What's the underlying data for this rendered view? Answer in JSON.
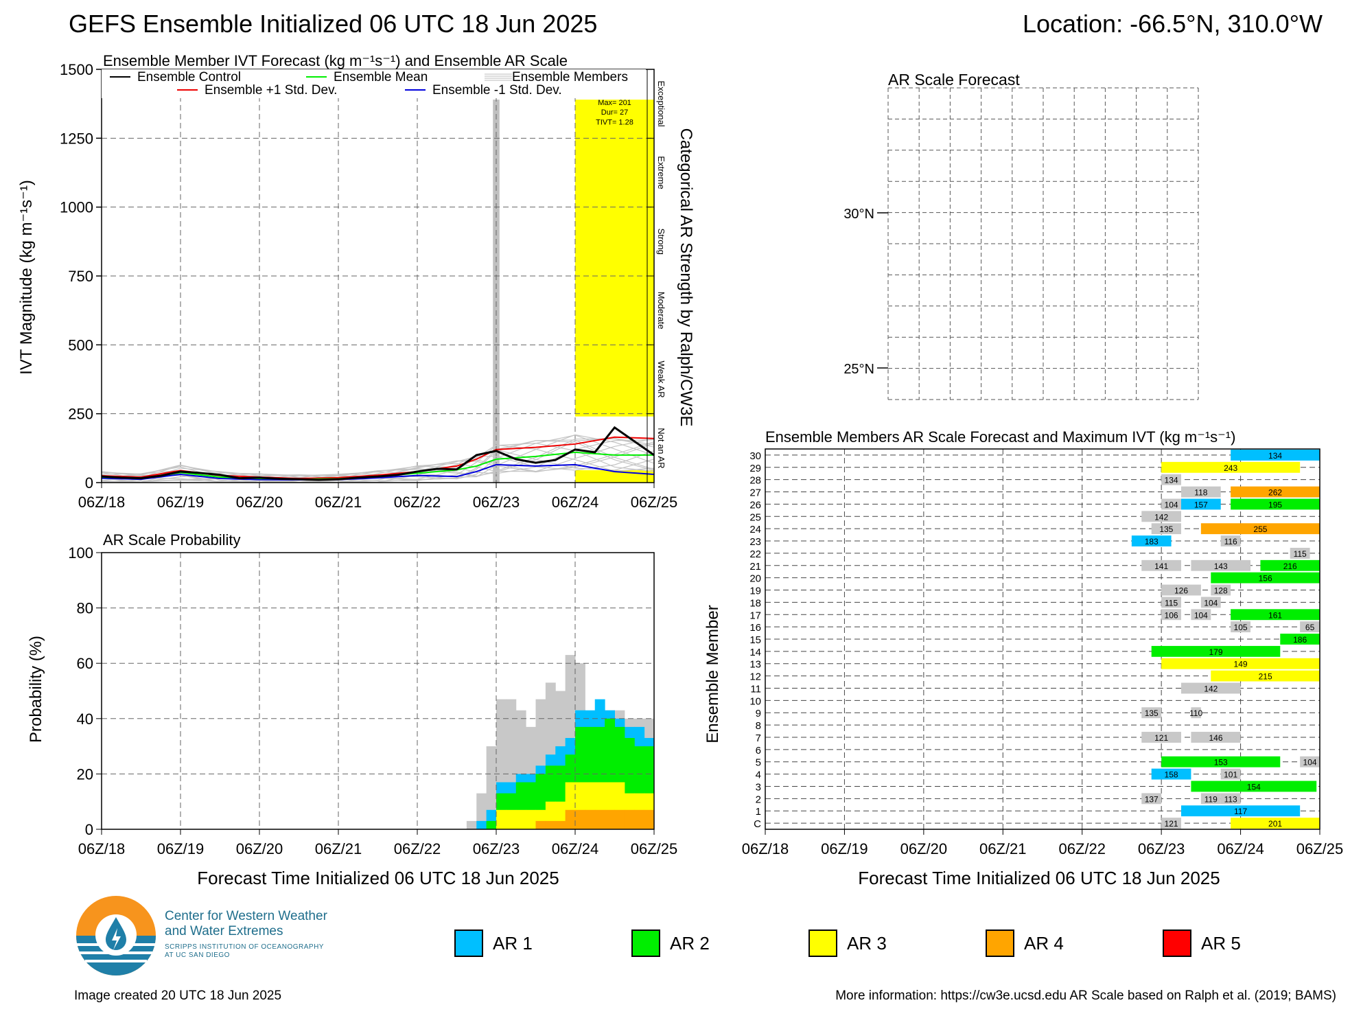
{
  "title": "GEFS Ensemble Initialized 06 UTC 18 Jun 2025",
  "location": "Location: -66.5°N, 310.0°W",
  "time_ticks": [
    "06Z/18",
    "06Z/19",
    "06Z/20",
    "06Z/21",
    "06Z/22",
    "06Z/23",
    "06Z/24",
    "06Z/25"
  ],
  "colors": {
    "ar1": "#00bfff",
    "ar2": "#00ee00",
    "ar3": "#ffff00",
    "ar4": "#ffa500",
    "ar5": "#ff0000",
    "gray": "#c8c8c8"
  },
  "chart_data": [
    {
      "id": "ivt",
      "type": "line",
      "title": "Ensemble Member IVT Forecast (kg m⁻¹s⁻¹) and Ensemble AR Scale",
      "ylabel": "IVT Magnitude (kg m⁻¹s⁻¹)",
      "right_label": "Categorical AR Strength by Ralph/CW3E",
      "ylim": [
        0,
        1500
      ],
      "yticks": [
        "0",
        "250",
        "500",
        "750",
        "1000",
        "1250",
        "1500"
      ],
      "xlim_hours": [
        0,
        168
      ],
      "legend": [
        "Ensemble Control",
        "Ensemble Mean",
        "Ensemble Members",
        "Ensemble +1 Std. Dev.",
        "Ensemble -1 Std. Dev."
      ],
      "categories": [
        "Not an AR",
        "Weak AR",
        "Moderate",
        "Strong",
        "Extreme",
        "Exceptional"
      ],
      "ar_box": {
        "label_max": "Max= 201",
        "label_dur": "Dur= 27",
        "label_tivt": "TIVT= 1.28"
      },
      "series": [
        {
          "name": "Ensemble Control",
          "color": "#000000",
          "x": [
            0,
            6,
            12,
            18,
            24,
            30,
            36,
            42,
            48,
            54,
            60,
            66,
            72,
            78,
            84,
            90,
            96,
            102,
            108,
            114,
            120,
            126,
            132,
            138,
            144,
            150,
            156,
            162,
            168
          ],
          "y": [
            22,
            18,
            16,
            25,
            40,
            35,
            28,
            16,
            18,
            14,
            12,
            10,
            12,
            18,
            22,
            28,
            40,
            50,
            48,
            100,
            115,
            85,
            72,
            82,
            120,
            110,
            200,
            150,
            100
          ]
        },
        {
          "name": "Ensemble Mean",
          "color": "#00ee00",
          "x": [
            0,
            12,
            24,
            36,
            48,
            60,
            72,
            84,
            96,
            108,
            114,
            120,
            132,
            144,
            156,
            168
          ],
          "y": [
            20,
            15,
            36,
            20,
            15,
            12,
            14,
            22,
            34,
            46,
            60,
            85,
            95,
            110,
            100,
            100
          ]
        },
        {
          "name": "Ensemble +1 Std. Dev.",
          "color": "#ee0000",
          "x": [
            0,
            12,
            24,
            36,
            48,
            60,
            72,
            84,
            96,
            108,
            114,
            120,
            132,
            144,
            156,
            168
          ],
          "y": [
            25,
            20,
            44,
            26,
            20,
            15,
            18,
            27,
            40,
            60,
            85,
            120,
            128,
            140,
            165,
            160
          ]
        },
        {
          "name": "Ensemble -1 Std. Dev.",
          "color": "#0000dd",
          "x": [
            0,
            12,
            24,
            36,
            48,
            60,
            72,
            84,
            96,
            108,
            114,
            120,
            132,
            144,
            156,
            168
          ],
          "y": [
            16,
            12,
            30,
            15,
            11,
            10,
            11,
            17,
            26,
            22,
            40,
            65,
            60,
            65,
            40,
            30
          ]
        }
      ]
    },
    {
      "id": "prob",
      "type": "area",
      "title": "AR Scale Probability",
      "ylabel": "Probability (%)",
      "xlabel": "",
      "ylim": [
        0,
        100
      ],
      "yticks": [
        "0",
        "20",
        "40",
        "60",
        "80",
        "100"
      ],
      "bin_start_hours": [
        111,
        114,
        117,
        120,
        123,
        126,
        129,
        132,
        135,
        138,
        141,
        144,
        147,
        150,
        153,
        156,
        159,
        162,
        165
      ],
      "series": [
        {
          "name": "Any",
          "values": [
            3,
            13,
            30,
            47,
            47,
            43,
            37,
            47,
            53,
            50,
            63,
            60,
            40,
            40,
            43,
            43,
            40,
            40,
            40
          ]
        },
        {
          "name": "AR 1",
          "values": [
            0,
            3,
            7,
            17,
            17,
            20,
            20,
            23,
            27,
            30,
            33,
            43,
            43,
            47,
            43,
            40,
            37,
            37,
            33
          ]
        },
        {
          "name": "AR 2",
          "values": [
            0,
            0,
            3,
            13,
            13,
            17,
            17,
            20,
            23,
            23,
            27,
            37,
            37,
            37,
            40,
            37,
            33,
            30,
            30
          ]
        },
        {
          "name": "AR 3",
          "values": [
            0,
            0,
            0,
            7,
            7,
            7,
            7,
            7,
            10,
            10,
            17,
            17,
            17,
            17,
            17,
            17,
            13,
            13,
            13
          ]
        },
        {
          "name": "AR 4",
          "values": [
            0,
            0,
            0,
            0,
            0,
            0,
            0,
            3,
            3,
            3,
            7,
            7,
            7,
            7,
            7,
            7,
            7,
            7,
            7
          ]
        }
      ]
    },
    {
      "id": "members",
      "type": "table",
      "title": "Ensemble Members AR Scale Forecast and Maximum IVT (kg m⁻¹s⁻¹)",
      "ylabel": "Ensemble Member",
      "xlabel": "Forecast Time Initialized 06 UTC 18 Jun 2025",
      "rows": [
        "C",
        "1",
        "2",
        "3",
        "4",
        "5",
        "6",
        "7",
        "8",
        "9",
        "10",
        "11",
        "12",
        "13",
        "14",
        "15",
        "16",
        "17",
        "18",
        "19",
        "20",
        "21",
        "22",
        "23",
        "24",
        "25",
        "26",
        "27",
        "28",
        "29",
        "30"
      ],
      "events": [
        {
          "row": "C",
          "start": 120,
          "end": 126,
          "cat": 0,
          "label": "121"
        },
        {
          "row": "C",
          "start": 141,
          "end": 168,
          "cat": 3,
          "label": "201"
        },
        {
          "row": "1",
          "start": 126,
          "end": 162,
          "cat": 1,
          "label": "117"
        },
        {
          "row": "2",
          "start": 114,
          "end": 120,
          "cat": 0,
          "label": "137"
        },
        {
          "row": "2",
          "start": 132,
          "end": 138,
          "cat": 0,
          "label": "119"
        },
        {
          "row": "2",
          "start": 138,
          "end": 144,
          "cat": 0,
          "label": "113"
        },
        {
          "row": "3",
          "start": 129,
          "end": 167,
          "cat": 2,
          "label": "154"
        },
        {
          "row": "4",
          "start": 117,
          "end": 129,
          "cat": 1,
          "label": "158"
        },
        {
          "row": "4",
          "start": 138,
          "end": 144,
          "cat": 0,
          "label": "101"
        },
        {
          "row": "5",
          "start": 120,
          "end": 156,
          "cat": 2,
          "label": "153"
        },
        {
          "row": "5",
          "start": 162,
          "end": 168,
          "cat": 0,
          "label": "104"
        },
        {
          "row": "7",
          "start": 114,
          "end": 126,
          "cat": 0,
          "label": "121"
        },
        {
          "row": "7",
          "start": 129,
          "end": 144,
          "cat": 0,
          "label": "146"
        },
        {
          "row": "9",
          "start": 114,
          "end": 120,
          "cat": 0,
          "label": "135"
        },
        {
          "row": "9",
          "start": 129,
          "end": 132,
          "cat": 0,
          "label": "110"
        },
        {
          "row": "11",
          "start": 126,
          "end": 144,
          "cat": 0,
          "label": "142"
        },
        {
          "row": "12",
          "start": 135,
          "end": 168,
          "cat": 3,
          "label": "215"
        },
        {
          "row": "13",
          "start": 120,
          "end": 168,
          "cat": 3,
          "label": "149"
        },
        {
          "row": "14",
          "start": 117,
          "end": 156,
          "cat": 2,
          "label": "179"
        },
        {
          "row": "15",
          "start": 156,
          "end": 168,
          "cat": 2,
          "label": "186"
        },
        {
          "row": "16",
          "start": 141,
          "end": 147,
          "cat": 0,
          "label": "105"
        },
        {
          "row": "16",
          "start": 162,
          "end": 168,
          "cat": 0,
          "label": "65"
        },
        {
          "row": "17",
          "start": 120,
          "end": 126,
          "cat": 0,
          "label": "106"
        },
        {
          "row": "17",
          "start": 129,
          "end": 135,
          "cat": 0,
          "label": "104"
        },
        {
          "row": "17",
          "start": 141,
          "end": 168,
          "cat": 2,
          "label": "161"
        },
        {
          "row": "18",
          "start": 120,
          "end": 126,
          "cat": 0,
          "label": "115"
        },
        {
          "row": "18",
          "start": 132,
          "end": 138,
          "cat": 0,
          "label": "104"
        },
        {
          "row": "19",
          "start": 120,
          "end": 132,
          "cat": 0,
          "label": "126"
        },
        {
          "row": "19",
          "start": 135,
          "end": 141,
          "cat": 0,
          "label": "128"
        },
        {
          "row": "20",
          "start": 135,
          "end": 168,
          "cat": 2,
          "label": "156"
        },
        {
          "row": "21",
          "start": 114,
          "end": 126,
          "cat": 0,
          "label": "141"
        },
        {
          "row": "21",
          "start": 129,
          "end": 147,
          "cat": 0,
          "label": "143"
        },
        {
          "row": "21",
          "start": 150,
          "end": 168,
          "cat": 2,
          "label": "216"
        },
        {
          "row": "22",
          "start": 159,
          "end": 165,
          "cat": 0,
          "label": "115"
        },
        {
          "row": "23",
          "start": 111,
          "end": 123,
          "cat": 1,
          "label": "183"
        },
        {
          "row": "23",
          "start": 138,
          "end": 144,
          "cat": 0,
          "label": "116"
        },
        {
          "row": "24",
          "start": 117,
          "end": 126,
          "cat": 0,
          "label": "135"
        },
        {
          "row": "24",
          "start": 132,
          "end": 168,
          "cat": 4,
          "label": "255"
        },
        {
          "row": "25",
          "start": 114,
          "end": 126,
          "cat": 0,
          "label": "142"
        },
        {
          "row": "26",
          "start": 120,
          "end": 126,
          "cat": 0,
          "label": "104"
        },
        {
          "row": "26",
          "start": 126,
          "end": 138,
          "cat": 1,
          "label": "157"
        },
        {
          "row": "26",
          "start": 141,
          "end": 168,
          "cat": 2,
          "label": "195"
        },
        {
          "row": "27",
          "start": 126,
          "end": 138,
          "cat": 0,
          "label": "118"
        },
        {
          "row": "27",
          "start": 141,
          "end": 168,
          "cat": 4,
          "label": "262"
        },
        {
          "row": "28",
          "start": 120,
          "end": 126,
          "cat": 0,
          "label": "134"
        },
        {
          "row": "29",
          "start": 120,
          "end": 162,
          "cat": 3,
          "label": "243"
        },
        {
          "row": "30",
          "start": 141,
          "end": 168,
          "cat": 1,
          "label": "134"
        }
      ]
    }
  ],
  "map": {
    "title": "AR Scale Forecast",
    "lat_labels": [
      "30°N",
      "25°N"
    ]
  },
  "xlabel_left": "Forecast Time Initialized 06 UTC 18 Jun 2025",
  "logo": {
    "line1": "Center for Western Weather",
    "line2": "and Water Extremes",
    "line3": "SCRIPPS INSTITUTION OF OCEANOGRAPHY",
    "line4": "AT UC SAN DIEGO"
  },
  "legend": [
    {
      "label": "AR 1",
      "color": "#00bfff"
    },
    {
      "label": "AR 2",
      "color": "#00ee00"
    },
    {
      "label": "AR 3",
      "color": "#ffff00"
    },
    {
      "label": "AR 4",
      "color": "#ffa500"
    },
    {
      "label": "AR 5",
      "color": "#ff0000"
    }
  ],
  "footer": {
    "created": "Image created 20 UTC 18 Jun 2025",
    "more": "More information: https://cw3e.ucsd.edu AR Scale based on Ralph et al. (2019; BAMS)"
  }
}
